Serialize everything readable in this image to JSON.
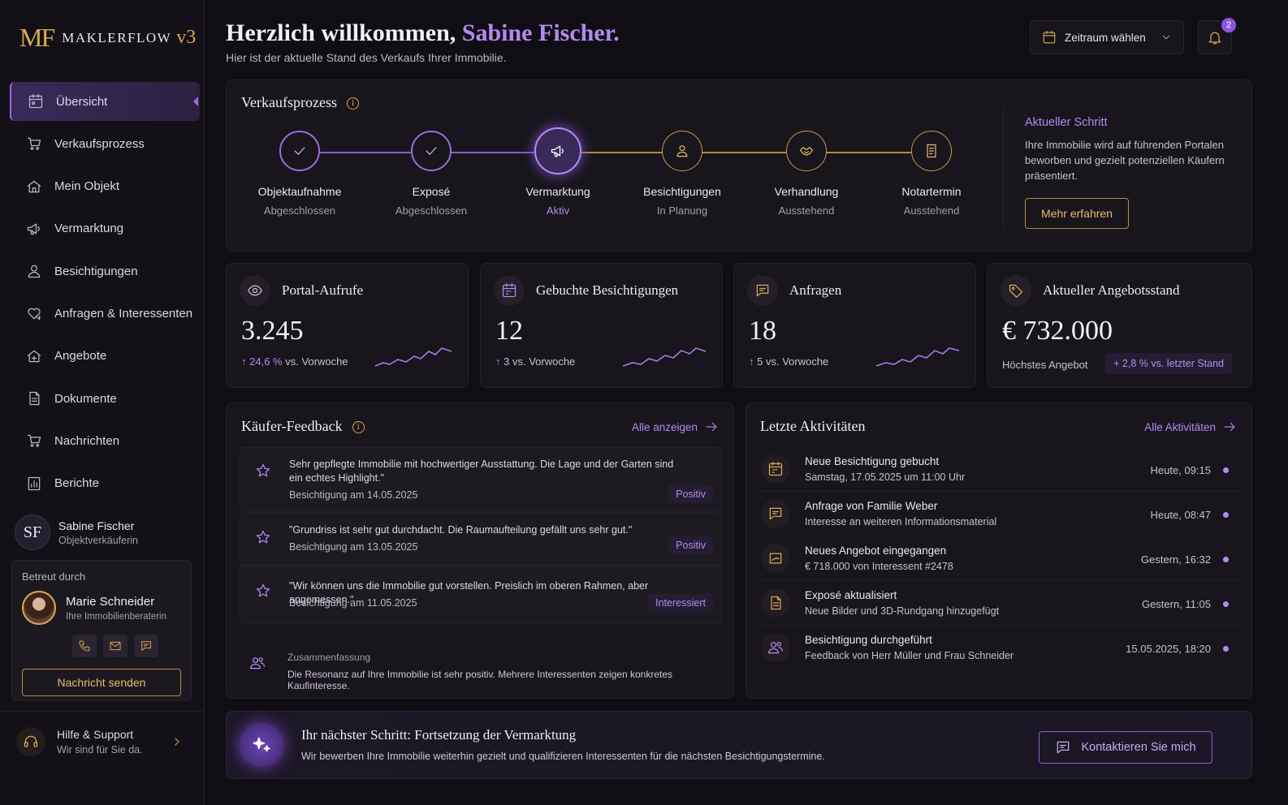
{
  "app": {
    "logo_mark": "MF",
    "logo_text": "MAKLERFLOW",
    "logo_version": "v3"
  },
  "sidebar": {
    "items": [
      {
        "label": "Übersicht",
        "icon": "calendar-grid-icon",
        "active": true
      },
      {
        "label": "Verkaufsprozess",
        "icon": "cart-icon"
      },
      {
        "label": "Mein Objekt",
        "icon": "house-icon"
      },
      {
        "label": "Vermarktung",
        "icon": "megaphone-icon"
      },
      {
        "label": "Besichtigungen",
        "icon": "person-icon"
      },
      {
        "label": "Anfragen & Interessenten",
        "icon": "heart-chat-icon"
      },
      {
        "label": "Angebote",
        "icon": "house-offer-icon"
      },
      {
        "label": "Dokumente",
        "icon": "document-icon"
      },
      {
        "label": "Nachrichten",
        "icon": "cart-icon"
      },
      {
        "label": "Berichte",
        "icon": "bar-chart-icon"
      }
    ],
    "user": {
      "initials": "SF",
      "name": "Sabine Fischer",
      "role": "Objektverkäuferin"
    },
    "advisor": {
      "label": "Betreut durch",
      "name": "Marie Schneider",
      "role": "Ihre Immobilienberaterin",
      "send_label": "Nachricht senden"
    },
    "help": {
      "title": "Hilfe & Support",
      "subtitle": "Wir sind für Sie da."
    }
  },
  "header": {
    "greeting": "Herzlich willkommen,",
    "user_name": "Sabine Fischer.",
    "subtitle": "Hier ist der aktuelle Stand des Verkaufs Ihrer Immobilie.",
    "period_label": "Zeitraum wählen",
    "notifications": "2"
  },
  "process": {
    "title": "Verkaufsprozess",
    "steps": [
      {
        "name": "Objektaufnahme",
        "status": "Abgeschlossen",
        "state": "done"
      },
      {
        "name": "Exposé",
        "status": "Abgeschlossen",
        "state": "done"
      },
      {
        "name": "Vermarktung",
        "status": "Aktiv",
        "state": "active"
      },
      {
        "name": "Besichtigungen",
        "status": "In Planung",
        "state": "pending"
      },
      {
        "name": "Verhandlung",
        "status": "Ausstehend",
        "state": "pending"
      },
      {
        "name": "Notartermin",
        "status": "Ausstehend",
        "state": "pending"
      }
    ],
    "current_title": "Aktueller Schritt",
    "current_text": "Ihre Immobilie wird auf führenden Portalen beworben und gezielt potenziellen Käufern präsentiert.",
    "more_label": "Mehr erfahren"
  },
  "kpis": [
    {
      "label": "Portal-Aufrufe",
      "value": "3.245",
      "delta": "24,6 %",
      "delta_suffix": " vs. Vorwoche",
      "icon": "eye-icon"
    },
    {
      "label": "Gebuchte Besichtigungen",
      "value": "12",
      "delta": "3",
      "delta_suffix": " vs. Vorwoche",
      "icon": "calendar-icon"
    },
    {
      "label": "Anfragen",
      "value": "18",
      "delta": "5",
      "delta_suffix": " vs. Vorwoche",
      "icon": "chat-icon"
    },
    {
      "label": "Aktueller Angebotsstand",
      "value": "€ 732.000",
      "sub": "Höchstes Angebot",
      "badge": "+ 2,8 % vs. letzter Stand",
      "icon": "tag-icon"
    }
  ],
  "feedback": {
    "title": "Käufer-Feedback",
    "link": "Alle anzeigen",
    "items": [
      {
        "text": "Sehr gepflegte Immobilie mit hochwertiger Ausstattung. Die Lage und der Garten sind ein echtes Highlight.\"",
        "date": "Besichtigung am 14.05.2025",
        "badge": "Positiv"
      },
      {
        "text": "\"Grundriss ist sehr gut durchdacht. Die Raumaufteilung gefällt uns sehr gut.\"",
        "date": "Besichtigung am 13.05.2025",
        "badge": "Positiv"
      },
      {
        "text": "\"Wir können uns die Immobilie gut vorstellen. Preislich im oberen Rahmen, aber angemessen.\"",
        "date": "Besichtigung am 11.05.2025",
        "badge": "Interessiert"
      }
    ],
    "summary_title": "Zusammenfassung",
    "summary_text": "Die Resonanz auf Ihre Immobilie ist sehr positiv. Mehrere Interessenten zeigen konkretes Kaufinteresse."
  },
  "activities": {
    "title": "Letzte Aktivitäten",
    "link": "Alle Aktivitäten",
    "items": [
      {
        "title": "Neue Besichtigung gebucht",
        "detail": "Samstag, 17.05.2025 um 11:00 Uhr",
        "time": "Heute, 09:15",
        "icon": "calendar-icon"
      },
      {
        "title": "Anfrage von Familie Weber",
        "detail": "Interesse an weiteren Informationsmaterial",
        "time": "Heute, 08:47",
        "icon": "chat-icon"
      },
      {
        "title": "Neues Angebot eingegangen",
        "detail": "€ 718.000 von Interessent #2478",
        "time": "Gestern, 16:32",
        "icon": "signature-icon"
      },
      {
        "title": "Exposé aktualisiert",
        "detail": "Neue Bilder und 3D-Rundgang hinzugefügt",
        "time": "Gestern, 11:05",
        "icon": "document-icon"
      },
      {
        "title": "Besichtigung durchgeführt",
        "detail": "Feedback von Herr Müller und Frau Schneider",
        "time": "15.05.2025, 18:20",
        "icon": "people-icon"
      }
    ]
  },
  "next_step": {
    "title": "Ihr nächster Schritt: Fortsetzung der Vermarktung",
    "text": "Wir bewerben Ihre Immobilie weiterhin gezielt und qualifizieren Interessenten für die nächsten Besichtigungstermine.",
    "button": "Kontaktieren Sie mich"
  },
  "colors": {
    "accent_purple": "#b48af2",
    "accent_gold": "#d9a94f",
    "background": "#100e14"
  }
}
